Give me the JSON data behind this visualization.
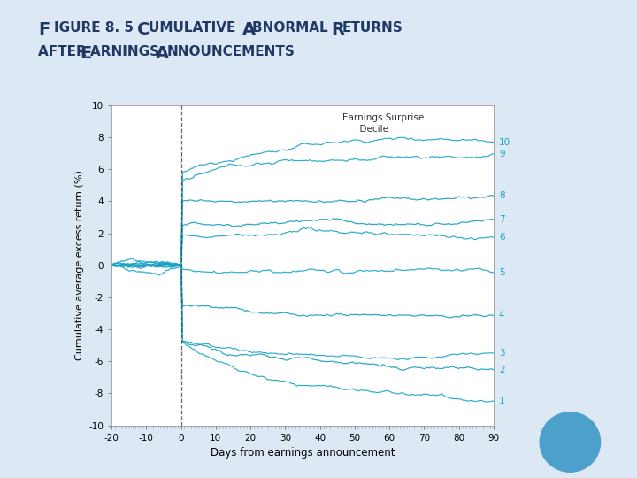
{
  "title_line1": "Figure 8. 5Cumulative Abnormal Returns",
  "title_line2": "after Earnings Announcements",
  "xlabel": "Days from earnings announcement",
  "ylabel": "Cumulative average excess return (%)",
  "xlim": [
    -20,
    90
  ],
  "ylim": [
    -10,
    10
  ],
  "xticks": [
    -20,
    -10,
    0,
    10,
    20,
    30,
    40,
    50,
    60,
    70,
    80,
    90
  ],
  "yticks": [
    -10,
    -8,
    -6,
    -4,
    -2,
    0,
    2,
    4,
    6,
    8,
    10
  ],
  "vline_x": 0,
  "legend_title": "Earnings Surprise\nDecile",
  "deciles": [
    10,
    9,
    8,
    7,
    6,
    5,
    4,
    3,
    2,
    1
  ],
  "background_color": "#dce9f5",
  "plot_bg_color": "#ffffff",
  "title_color": "#1F3864",
  "circle_color": "#4d9fcc",
  "pre_days": 20,
  "post_days": 90,
  "end_values": [
    8.0,
    6.8,
    4.1,
    3.0,
    1.5,
    -0.7,
    -3.5,
    -5.5,
    -6.8,
    -8.6
  ],
  "jump_values": [
    5.8,
    5.2,
    4.0,
    2.5,
    1.9,
    -0.2,
    -2.5,
    -4.7,
    -4.7,
    -4.7
  ],
  "line_colors": [
    "#1fa8c9",
    "#1fa8c9",
    "#1aa0c0",
    "#1aa0c0",
    "#1fa8c9",
    "#1fa8c9",
    "#1aa0c0",
    "#1fa8c9",
    "#1aa0c0",
    "#1fa8c9"
  ]
}
